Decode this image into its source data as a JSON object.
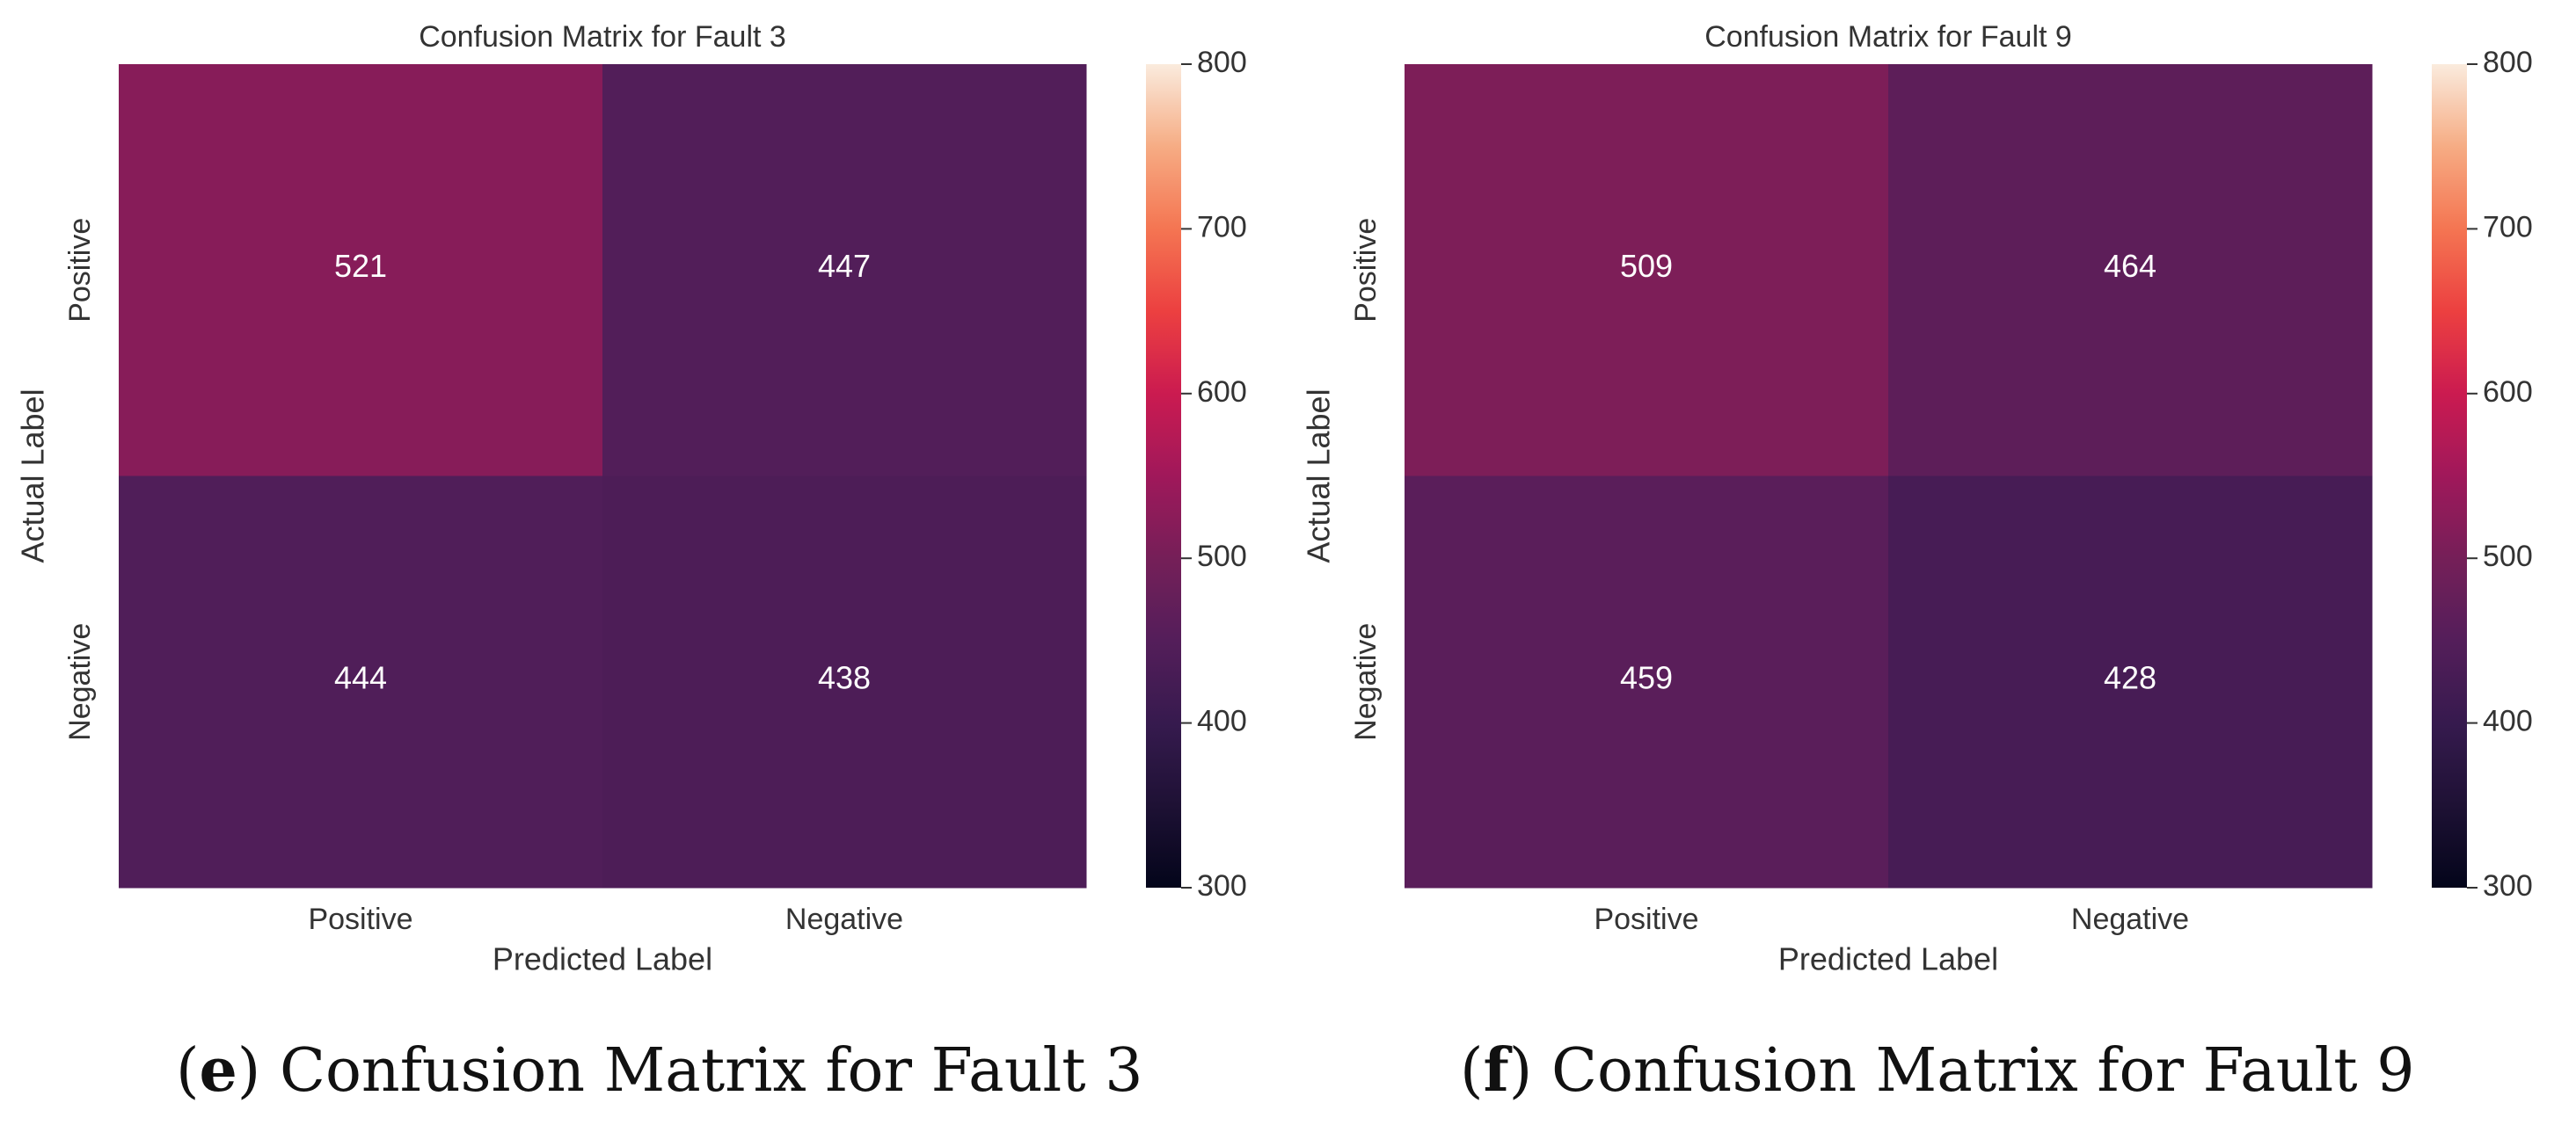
{
  "chart_data": [
    {
      "type": "heatmap",
      "title": "Confusion Matrix for Fault 3",
      "xlabel": "Predicted Label",
      "ylabel": "Actual Label",
      "x_categories": [
        "Positive",
        "Negative"
      ],
      "y_categories": [
        "Positive",
        "Negative"
      ],
      "values": [
        [
          521,
          447
        ],
        [
          444,
          438
        ]
      ],
      "colorbar": {
        "range": [
          300,
          800
        ],
        "ticks": [
          300,
          400,
          500,
          600,
          700,
          800
        ],
        "colormap": "rocket"
      },
      "caption": {
        "letter": "e",
        "text": "Confusion Matrix for Fault 3"
      }
    },
    {
      "type": "heatmap",
      "title": "Confusion Matrix for Fault 9",
      "xlabel": "Predicted Label",
      "ylabel": "Actual Label",
      "x_categories": [
        "Positive",
        "Negative"
      ],
      "y_categories": [
        "Positive",
        "Negative"
      ],
      "values": [
        [
          509,
          464
        ],
        [
          459,
          428
        ]
      ],
      "colorbar": {
        "range": [
          300,
          800
        ],
        "ticks": [
          300,
          400,
          500,
          600,
          700,
          800
        ],
        "colormap": "rocket"
      },
      "caption": {
        "letter": "f",
        "text": "Confusion Matrix for Fault 9"
      }
    }
  ]
}
